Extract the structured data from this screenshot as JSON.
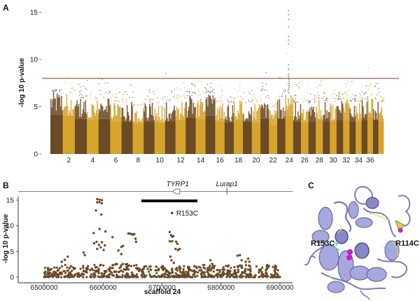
{
  "panels": {
    "a_letter": "A",
    "b_letter": "B",
    "c_letter": "C"
  },
  "colors": {
    "brown": "#6b4a25",
    "gold": "#d6a32b",
    "threshold": "#7a3a35",
    "axis": "#333333",
    "protein": "#9a9ad6",
    "protein_dark": "#5a5a8a",
    "highlight_yellow": "#e6e04a",
    "highlight_cyan": "#5ac8c8",
    "ion_magenta": "#c81ec8"
  },
  "chart_data": [
    {
      "type": "scatter",
      "subtype": "manhattan",
      "title": "",
      "xlabel": "",
      "ylabel": "-log 10 p-value",
      "ylim": [
        0,
        15.5
      ],
      "yticks": [
        0,
        5,
        10,
        15
      ],
      "threshold": 8.0,
      "chromosome_count": 38,
      "xtick_labels": [
        "2",
        "4",
        "6",
        "8",
        "10",
        "12",
        "14",
        "16",
        "18",
        "20",
        "22",
        "24",
        "26",
        "28",
        "30",
        "32",
        "34",
        "36"
      ],
      "chromosomes": [
        {
          "chr": 1,
          "base_max": 6.7,
          "peak": 6.9
        },
        {
          "chr": 2,
          "base_max": 6.5,
          "peak": 8.7
        },
        {
          "chr": 3,
          "base_max": 6.0,
          "peak": 8.8
        },
        {
          "chr": 4,
          "base_max": 5.8,
          "peak": 6.6
        },
        {
          "chr": 5,
          "base_max": 6.0,
          "peak": 8.2
        },
        {
          "chr": 6,
          "base_max": 5.6,
          "peak": 6.8
        },
        {
          "chr": 7,
          "base_max": 5.5,
          "peak": 7.4
        },
        {
          "chr": 8,
          "base_max": 5.2,
          "peak": 5.6
        },
        {
          "chr": 9,
          "base_max": 5.5,
          "peak": 7.2
        },
        {
          "chr": 10,
          "base_max": 5.4,
          "peak": 7.0
        },
        {
          "chr": 11,
          "base_max": 5.6,
          "peak": 9.1
        },
        {
          "chr": 12,
          "base_max": 5.8,
          "peak": 7.8
        },
        {
          "chr": 13,
          "base_max": 6.2,
          "peak": 8.1
        },
        {
          "chr": 14,
          "base_max": 6.0,
          "peak": 8.5
        },
        {
          "chr": 15,
          "base_max": 6.5,
          "peak": 8.3
        },
        {
          "chr": 16,
          "base_max": 5.6,
          "peak": 8.2
        },
        {
          "chr": 17,
          "base_max": 5.4,
          "peak": 7.0
        },
        {
          "chr": 18,
          "base_max": 5.8,
          "peak": 8.0
        },
        {
          "chr": 19,
          "base_max": 5.5,
          "peak": 7.2
        },
        {
          "chr": 20,
          "base_max": 5.4,
          "peak": 6.6
        },
        {
          "chr": 21,
          "base_max": 6.0,
          "peak": 8.9
        },
        {
          "chr": 22,
          "base_max": 5.0,
          "peak": 5.6
        },
        {
          "chr": 23,
          "base_max": 6.0,
          "peak": 9.0
        },
        {
          "chr": 24,
          "base_max": 6.5,
          "peak": 15.2
        },
        {
          "chr": 25,
          "base_max": 5.5,
          "peak": 7.8
        },
        {
          "chr": 26,
          "base_max": 5.4,
          "peak": 7.8
        },
        {
          "chr": 27,
          "base_max": 5.5,
          "peak": 6.9
        },
        {
          "chr": 28,
          "base_max": 5.8,
          "peak": 7.9
        },
        {
          "chr": 29,
          "base_max": 5.6,
          "peak": 7.0
        },
        {
          "chr": 30,
          "base_max": 5.6,
          "peak": 7.2
        },
        {
          "chr": 31,
          "base_max": 5.8,
          "peak": 6.8
        },
        {
          "chr": 32,
          "base_max": 5.8,
          "peak": 8.9
        },
        {
          "chr": 33,
          "base_max": 5.6,
          "peak": 7.8
        },
        {
          "chr": 34,
          "base_max": 5.6,
          "peak": 7.7
        },
        {
          "chr": 35,
          "base_max": 5.8,
          "peak": 7.6
        },
        {
          "chr": 36,
          "base_max": 6.3,
          "peak": 10.0
        },
        {
          "chr": 37,
          "base_max": 5.8,
          "peak": 8.6
        },
        {
          "chr": 38,
          "base_max": 5.6,
          "peak": 6.9
        }
      ]
    },
    {
      "type": "scatter",
      "subtype": "regional-association",
      "xlabel": "scaffold 24",
      "ylabel": "-log 10 p-value",
      "xlim": [
        6485000,
        6905000
      ],
      "ylim": [
        -0.5,
        16
      ],
      "xticks": [
        6500000,
        6600000,
        6700000,
        6800000,
        6900000
      ],
      "xtick_labels": [
        "6500000",
        "6600000",
        "6700000",
        "6800000",
        "6900000"
      ],
      "yticks": [
        0,
        5,
        10,
        15
      ],
      "genes": [
        {
          "name": "TYRP1",
          "start": 6718000,
          "end": 6730000,
          "strand": "-"
        },
        {
          "name": "Lurap1",
          "position": 6810000
        }
      ],
      "associated_interval": [
        6665000,
        6760000
      ],
      "annotation": {
        "label": "R153C",
        "x": 6717000,
        "y": 12.5
      },
      "highlight_points": [
        {
          "x": 6590000,
          "y": 15.2
        },
        {
          "x": 6594000,
          "y": 15.1
        },
        {
          "x": 6598000,
          "y": 15.0
        },
        {
          "x": 6590000,
          "y": 14.6
        },
        {
          "x": 6594000,
          "y": 14.6
        },
        {
          "x": 6598000,
          "y": 14.4
        },
        {
          "x": 6588000,
          "y": 13.0
        },
        {
          "x": 6597000,
          "y": 12.2
        },
        {
          "x": 6594000,
          "y": 9.4
        },
        {
          "x": 6584000,
          "y": 8.6
        },
        {
          "x": 6604000,
          "y": 8.9
        },
        {
          "x": 6585000,
          "y": 6.6
        },
        {
          "x": 6589000,
          "y": 6.9
        },
        {
          "x": 6593000,
          "y": 6.3
        },
        {
          "x": 6598000,
          "y": 6.8
        },
        {
          "x": 6603000,
          "y": 6.2
        },
        {
          "x": 6590000,
          "y": 5.5
        },
        {
          "x": 6596000,
          "y": 5.8
        },
        {
          "x": 6601000,
          "y": 5.3
        },
        {
          "x": 6616000,
          "y": 7.8
        },
        {
          "x": 6626000,
          "y": 5.2
        },
        {
          "x": 6631000,
          "y": 5.9
        },
        {
          "x": 6634000,
          "y": 6.1
        },
        {
          "x": 6631000,
          "y": 4.5
        },
        {
          "x": 6643000,
          "y": 8.5
        },
        {
          "x": 6645000,
          "y": 8.5
        },
        {
          "x": 6648000,
          "y": 8.4
        },
        {
          "x": 6651000,
          "y": 8.3
        },
        {
          "x": 6653000,
          "y": 8.4
        },
        {
          "x": 6655000,
          "y": 7.5
        },
        {
          "x": 6656000,
          "y": 6.9
        },
        {
          "x": 6567000,
          "y": 4.8
        },
        {
          "x": 6569000,
          "y": 4.3
        },
        {
          "x": 6540000,
          "y": 4.0
        },
        {
          "x": 6535000,
          "y": 3.4
        },
        {
          "x": 6530000,
          "y": 3.0
        },
        {
          "x": 6713000,
          "y": 8.8
        },
        {
          "x": 6715000,
          "y": 8.2
        },
        {
          "x": 6717000,
          "y": 7.9
        },
        {
          "x": 6719000,
          "y": 8.0
        },
        {
          "x": 6713000,
          "y": 7.0
        },
        {
          "x": 6717000,
          "y": 7.0
        },
        {
          "x": 6724000,
          "y": 6.9
        },
        {
          "x": 6726000,
          "y": 6.5
        },
        {
          "x": 6723000,
          "y": 5.5
        },
        {
          "x": 6727000,
          "y": 5.3
        },
        {
          "x": 6730000,
          "y": 5.5
        },
        {
          "x": 6714000,
          "y": 4.0
        },
        {
          "x": 6716000,
          "y": 3.3
        },
        {
          "x": 6720000,
          "y": 2.8
        },
        {
          "x": 6828000,
          "y": 4.2
        },
        {
          "x": 6832000,
          "y": 4.3
        },
        {
          "x": 6835000,
          "y": 3.3
        },
        {
          "x": 6842000,
          "y": 3.0
        },
        {
          "x": 6846000,
          "y": 3.6
        },
        {
          "x": 6848000,
          "y": 3.0
        },
        {
          "x": 6782000,
          "y": 3.3
        },
        {
          "x": 6785000,
          "y": 2.6
        }
      ],
      "background_density_ranges": [
        {
          "x0": 6500000,
          "x1": 6580000,
          "ymax": 2.4
        },
        {
          "x0": 6580000,
          "x1": 6660000,
          "ymax": 2.6
        },
        {
          "x0": 6660000,
          "x1": 6740000,
          "ymax": 2.2
        },
        {
          "x0": 6740000,
          "x1": 6900000,
          "ymax": 2.4
        }
      ]
    }
  ],
  "structure": {
    "labels": [
      "R153C",
      "R114C"
    ]
  }
}
